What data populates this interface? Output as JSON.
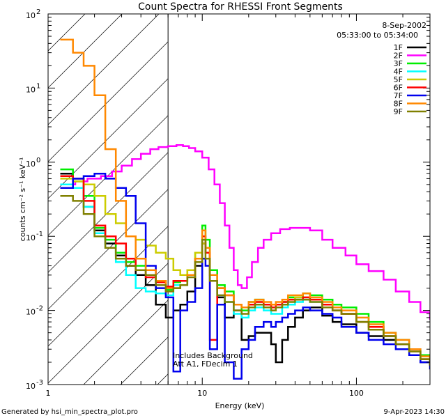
{
  "chart_data": {
    "type": "line",
    "title": "Count Spectra for RHESSI Front Segments",
    "xlabel": "Energy (keV)",
    "ylabel": "counts cm⁻² s⁻¹ keV⁻¹",
    "xscale": "log",
    "yscale": "log",
    "xlim": [
      1.0,
      300.0
    ],
    "ylim": [
      0.001,
      100.0
    ],
    "x_ticks": [
      {
        "value": 1,
        "label": "1"
      },
      {
        "value": 10,
        "label": "10"
      },
      {
        "value": 100,
        "label": "100"
      }
    ],
    "y_ticks": [
      {
        "value": 100,
        "label": "10",
        "exp": "2"
      },
      {
        "value": 10,
        "label": "10",
        "exp": "1"
      },
      {
        "value": 1,
        "label": "10",
        "exp": "0"
      },
      {
        "value": 0.1,
        "label": "10",
        "exp": "-1"
      },
      {
        "value": 0.01,
        "label": "10",
        "exp": "-2"
      },
      {
        "value": 0.001,
        "label": "10",
        "exp": "-3"
      }
    ],
    "legend_position": "top-right",
    "date_label": "8-Sep-2002",
    "time_range": "05:33:00 to 05:34:00",
    "annotation_1": "Includes Background",
    "annotation_2": "Att A1, FDecim 1",
    "threshold_energy": 6.0,
    "series": [
      {
        "name": "1F",
        "color": "#000000",
        "x": [
          1.2,
          1.45,
          1.7,
          2.0,
          2.35,
          2.75,
          3.2,
          3.7,
          4.3,
          5.0,
          5.8,
          6.5,
          7.2,
          8.0,
          9.0,
          10.0,
          10.5,
          11.2,
          12.5,
          14.0,
          16.0,
          18.0,
          20.0,
          22.0,
          25.0,
          28.0,
          30.0,
          33.0,
          36.0,
          40.0,
          45.0,
          50.0,
          60.0,
          70.0,
          80.0,
          100.0,
          120.0,
          150.0,
          180.0,
          220.0,
          260.0,
          300.0
        ],
        "y": [
          0.7,
          0.6,
          0.25,
          0.12,
          0.08,
          0.055,
          0.04,
          0.03,
          0.022,
          0.012,
          0.008,
          0.01,
          0.012,
          0.018,
          0.04,
          0.08,
          0.06,
          0.03,
          0.015,
          0.008,
          0.01,
          0.004,
          0.0045,
          0.005,
          0.005,
          0.0035,
          0.002,
          0.004,
          0.006,
          0.008,
          0.01,
          0.011,
          0.0085,
          0.007,
          0.0065,
          0.005,
          0.0045,
          0.004,
          0.0035,
          0.003,
          0.002,
          0.0018
        ]
      },
      {
        "name": "2F",
        "color": "#ff00ff",
        "x": [
          1.3,
          1.5,
          1.8,
          2.2,
          2.6,
          3.0,
          3.5,
          4.0,
          4.6,
          5.2,
          6.0,
          6.8,
          7.5,
          8.2,
          9.0,
          10.0,
          11.0,
          12.0,
          13.0,
          14.0,
          15.0,
          16.0,
          17.0,
          18.0,
          19.5,
          21.0,
          23.0,
          25.0,
          28.0,
          32.0,
          37.0,
          43.0,
          50.0,
          60.0,
          70.0,
          85.0,
          100.0,
          120.0,
          150.0,
          180.0,
          220.0,
          260.0,
          300.0
        ],
        "y": [
          0.5,
          0.55,
          0.6,
          0.65,
          0.75,
          0.9,
          1.1,
          1.3,
          1.5,
          1.6,
          1.65,
          1.7,
          1.65,
          1.55,
          1.4,
          1.15,
          0.8,
          0.5,
          0.28,
          0.14,
          0.07,
          0.035,
          0.022,
          0.02,
          0.028,
          0.045,
          0.07,
          0.09,
          0.11,
          0.125,
          0.13,
          0.13,
          0.12,
          0.09,
          0.07,
          0.055,
          0.042,
          0.034,
          0.026,
          0.018,
          0.013,
          0.0095,
          0.0075
        ]
      },
      {
        "name": "3F",
        "color": "#00ee00",
        "x": [
          1.2,
          1.45,
          1.7,
          2.0,
          2.35,
          2.75,
          3.2,
          3.7,
          4.3,
          5.0,
          5.8,
          6.5,
          7.2,
          8.0,
          9.0,
          10.0,
          10.5,
          11.2,
          12.5,
          14.0,
          16.0,
          18.0,
          20.0,
          22.0,
          25.0,
          28.0,
          30.0,
          33.0,
          36.0,
          40.0,
          45.0,
          50.0,
          60.0,
          70.0,
          80.0,
          100.0,
          120.0,
          150.0,
          180.0,
          220.0,
          260.0,
          300.0
        ],
        "y": [
          0.8,
          0.55,
          0.35,
          0.13,
          0.09,
          0.06,
          0.045,
          0.04,
          0.03,
          0.025,
          0.019,
          0.024,
          0.025,
          0.035,
          0.06,
          0.14,
          0.09,
          0.035,
          0.022,
          0.018,
          0.012,
          0.01,
          0.013,
          0.014,
          0.012,
          0.011,
          0.011,
          0.013,
          0.015,
          0.015,
          0.017,
          0.016,
          0.014,
          0.012,
          0.011,
          0.009,
          0.007,
          0.005,
          0.004,
          0.003,
          0.0025,
          0.002
        ]
      },
      {
        "name": "4F",
        "color": "#00ffff",
        "x": [
          1.2,
          1.45,
          1.7,
          2.0,
          2.35,
          2.75,
          3.2,
          3.7,
          4.3,
          5.0,
          5.8,
          6.5,
          7.2,
          8.0,
          9.0,
          10.0,
          10.5,
          11.2,
          12.5,
          14.0,
          16.0,
          18.0,
          20.0,
          22.0,
          25.0,
          28.0,
          30.0,
          33.0,
          36.0,
          40.0,
          45.0,
          50.0,
          60.0,
          70.0,
          80.0,
          100.0,
          120.0,
          150.0,
          180.0,
          220.0,
          260.0,
          300.0
        ],
        "y": [
          0.5,
          0.45,
          0.25,
          0.11,
          0.07,
          0.045,
          0.03,
          0.02,
          0.018,
          0.017,
          0.016,
          0.022,
          0.022,
          0.03,
          0.05,
          0.1,
          0.06,
          0.025,
          0.016,
          0.013,
          0.009,
          0.008,
          0.01,
          0.011,
          0.01,
          0.009,
          0.009,
          0.011,
          0.012,
          0.013,
          0.014,
          0.013,
          0.011,
          0.01,
          0.009,
          0.007,
          0.006,
          0.0045,
          0.0035,
          0.0028,
          0.0022,
          0.0018
        ]
      },
      {
        "name": "5F",
        "color": "#cccc00",
        "x": [
          1.2,
          1.45,
          1.7,
          2.0,
          2.35,
          2.75,
          3.2,
          3.7,
          4.3,
          5.0,
          5.8,
          6.5,
          7.2,
          8.0,
          9.0,
          10.0,
          10.5,
          11.2,
          12.5,
          14.0,
          16.0,
          18.0,
          20.0,
          22.0,
          25.0,
          28.0,
          30.0,
          33.0,
          36.0,
          40.0,
          45.0,
          50.0,
          60.0,
          70.0,
          80.0,
          100.0,
          120.0,
          150.0,
          180.0,
          220.0,
          260.0,
          300.0
        ],
        "y": [
          0.6,
          0.55,
          0.5,
          0.35,
          0.2,
          0.15,
          0.1,
          0.09,
          0.075,
          0.06,
          0.05,
          0.035,
          0.03,
          0.035,
          0.06,
          0.08,
          0.06,
          0.03,
          0.02,
          0.016,
          0.012,
          0.011,
          0.012,
          0.013,
          0.012,
          0.011,
          0.011,
          0.012,
          0.014,
          0.015,
          0.015,
          0.014,
          0.012,
          0.01,
          0.009,
          0.007,
          0.0055,
          0.0045,
          0.0035,
          0.0028,
          0.0022,
          0.0018
        ]
      },
      {
        "name": "6F",
        "color": "#ff0000",
        "x": [
          1.2,
          1.45,
          1.7,
          2.0,
          2.35,
          2.75,
          3.2,
          3.7,
          4.3,
          5.0,
          5.8,
          6.5,
          7.2,
          8.0,
          9.0,
          10.0,
          10.5,
          11.2,
          12.5,
          14.0,
          16.0,
          18.0,
          20.0,
          22.0,
          25.0,
          28.0,
          30.0,
          33.0,
          36.0,
          40.0,
          45.0,
          50.0,
          60.0,
          70.0,
          80.0,
          100.0,
          120.0,
          150.0,
          180.0,
          220.0,
          260.0,
          300.0
        ],
        "y": [
          0.65,
          0.6,
          0.3,
          0.14,
          0.1,
          0.08,
          0.05,
          0.035,
          0.028,
          0.024,
          0.021,
          0.025,
          0.025,
          0.03,
          0.05,
          0.1,
          0.06,
          0.004,
          0.02,
          0.016,
          0.012,
          0.011,
          0.012,
          0.013,
          0.012,
          0.011,
          0.012,
          0.013,
          0.014,
          0.014,
          0.015,
          0.014,
          0.012,
          0.01,
          0.009,
          0.007,
          0.006,
          0.0045,
          0.0035,
          0.0028,
          0.0022,
          0.0018
        ]
      },
      {
        "name": "7F",
        "color": "#0000ee",
        "x": [
          1.2,
          1.45,
          1.7,
          2.0,
          2.35,
          2.75,
          3.2,
          3.7,
          4.3,
          5.0,
          5.8,
          6.5,
          7.2,
          8.0,
          9.0,
          10.0,
          10.5,
          11.2,
          12.5,
          14.0,
          16.0,
          18.0,
          20.0,
          22.0,
          25.0,
          28.0,
          30.0,
          33.0,
          36.0,
          40.0,
          45.0,
          50.0,
          60.0,
          70.0,
          80.0,
          100.0,
          120.0,
          150.0,
          180.0,
          220.0,
          260.0,
          300.0
        ],
        "y": [
          0.45,
          0.6,
          0.65,
          0.7,
          0.6,
          0.45,
          0.35,
          0.15,
          0.04,
          0.02,
          0.015,
          0.0015,
          0.01,
          0.013,
          0.02,
          0.05,
          0.04,
          0.003,
          0.012,
          0.002,
          0.0012,
          0.003,
          0.004,
          0.006,
          0.007,
          0.006,
          0.007,
          0.008,
          0.009,
          0.01,
          0.011,
          0.01,
          0.009,
          0.008,
          0.006,
          0.005,
          0.004,
          0.0035,
          0.003,
          0.0025,
          0.002,
          0.0016
        ]
      },
      {
        "name": "8F",
        "color": "#ff8800",
        "x": [
          1.2,
          1.45,
          1.7,
          2.0,
          2.35,
          2.75,
          3.2,
          3.7,
          4.3,
          5.0,
          5.8,
          6.5,
          7.2,
          8.0,
          9.0,
          10.0,
          10.5,
          11.2,
          12.5,
          14.0,
          16.0,
          18.0,
          20.0,
          22.0,
          25.0,
          28.0,
          30.0,
          33.0,
          36.0,
          40.0,
          45.0,
          50.0,
          60.0,
          70.0,
          80.0,
          100.0,
          120.0,
          150.0,
          180.0,
          220.0,
          260.0,
          300.0
        ],
        "y": [
          45.0,
          30.0,
          20.0,
          8.0,
          1.5,
          0.3,
          0.1,
          0.05,
          0.035,
          0.025,
          0.02,
          0.02,
          0.022,
          0.03,
          0.05,
          0.12,
          0.07,
          0.03,
          0.02,
          0.016,
          0.012,
          0.011,
          0.013,
          0.014,
          0.013,
          0.012,
          0.013,
          0.014,
          0.016,
          0.016,
          0.017,
          0.015,
          0.013,
          0.011,
          0.01,
          0.008,
          0.0065,
          0.005,
          0.004,
          0.003,
          0.0024,
          0.002
        ]
      },
      {
        "name": "9F",
        "color": "#808000",
        "x": [
          1.2,
          1.45,
          1.7,
          2.0,
          2.35,
          2.75,
          3.2,
          3.7,
          4.3,
          5.0,
          5.8,
          6.5,
          7.2,
          8.0,
          9.0,
          10.0,
          10.5,
          11.2,
          12.5,
          14.0,
          16.0,
          18.0,
          20.0,
          22.0,
          25.0,
          28.0,
          30.0,
          33.0,
          36.0,
          40.0,
          45.0,
          50.0,
          60.0,
          70.0,
          80.0,
          100.0,
          120.0,
          150.0,
          180.0,
          220.0,
          260.0,
          300.0
        ],
        "y": [
          0.35,
          0.3,
          0.2,
          0.1,
          0.07,
          0.05,
          0.04,
          0.035,
          0.03,
          0.022,
          0.018,
          0.02,
          0.022,
          0.028,
          0.045,
          0.09,
          0.05,
          0.025,
          0.016,
          0.013,
          0.01,
          0.009,
          0.011,
          0.012,
          0.011,
          0.01,
          0.011,
          0.012,
          0.013,
          0.014,
          0.014,
          0.013,
          0.011,
          0.01,
          0.009,
          0.007,
          0.0055,
          0.0045,
          0.0035,
          0.0028,
          0.0022,
          0.0018
        ]
      }
    ]
  },
  "footer": {
    "generated_by": "Generated by hsi_min_spectra_plot.pro",
    "generated_date": "9-Apr-2023 14:30"
  }
}
